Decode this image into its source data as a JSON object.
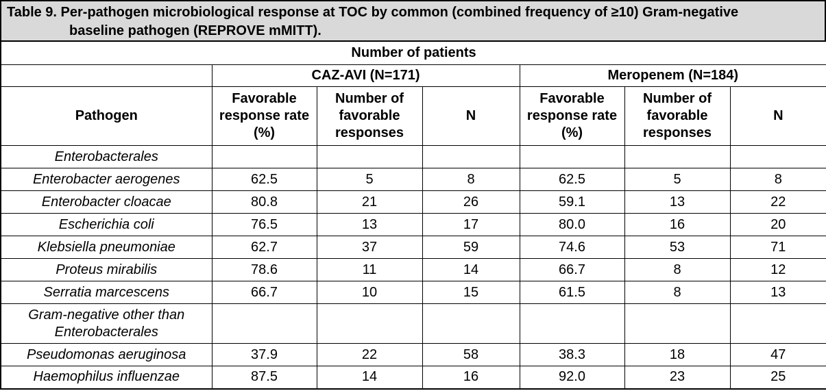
{
  "caption": {
    "line1": "Table 9. Per-pathogen microbiological response at TOC by common (combined frequency of ≥10) Gram-negative",
    "line2": "baseline pathogen (REPROVE mMITT)."
  },
  "header": {
    "span_title": "Number of patients",
    "group1": "CAZ-AVI (N=171)",
    "group2": "Meropenem (N=184)",
    "pathogen_col": "Pathogen",
    "columns": [
      "Favorable response rate (%)",
      "Number of favorable responses",
      "N",
      "Favorable response rate (%)",
      "Number of favorable responses",
      "N"
    ]
  },
  "rows": [
    {
      "pathogen": "Enterobacterales",
      "values": [
        "",
        "",
        "",
        "",
        "",
        ""
      ]
    },
    {
      "pathogen": "Enterobacter aerogenes",
      "values": [
        "62.5",
        "5",
        "8",
        "62.5",
        "5",
        "8"
      ]
    },
    {
      "pathogen": "Enterobacter cloacae",
      "values": [
        "80.8",
        "21",
        "26",
        "59.1",
        "13",
        "22"
      ]
    },
    {
      "pathogen": "Escherichia coli",
      "values": [
        "76.5",
        "13",
        "17",
        "80.0",
        "16",
        "20"
      ]
    },
    {
      "pathogen": "Klebsiella pneumoniae",
      "values": [
        "62.7",
        "37",
        "59",
        "74.6",
        "53",
        "71"
      ]
    },
    {
      "pathogen": "Proteus mirabilis",
      "values": [
        "78.6",
        "11",
        "14",
        "66.7",
        "8",
        "12"
      ]
    },
    {
      "pathogen": "Serratia marcescens",
      "values": [
        "66.7",
        "10",
        "15",
        "61.5",
        "8",
        "13"
      ]
    },
    {
      "pathogen": "Gram-negative other than Enterobacterales",
      "values": [
        "",
        "",
        "",
        "",
        "",
        ""
      ]
    },
    {
      "pathogen": "Pseudomonas aeruginosa",
      "values": [
        "37.9",
        "22",
        "58",
        "38.3",
        "18",
        "47"
      ]
    },
    {
      "pathogen": "Haemophilus influenzae",
      "values": [
        "87.5",
        "14",
        "16",
        "92.0",
        "23",
        "25"
      ]
    }
  ]
}
